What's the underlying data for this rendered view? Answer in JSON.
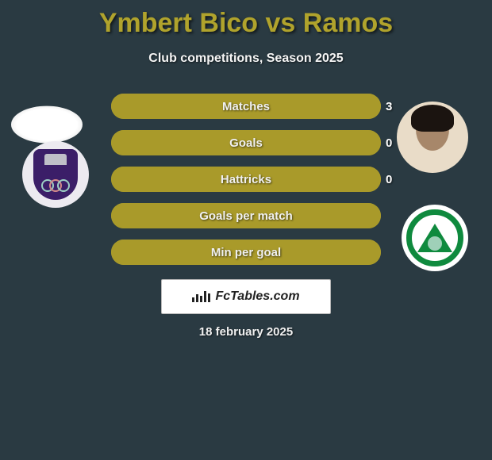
{
  "title": {
    "text": "Ymbert Bico vs Ramos",
    "color": "#b0a32c",
    "fontsize": 34
  },
  "subtitle": {
    "text": "Club competitions, Season 2025",
    "fontsize": 16
  },
  "background_color": "#2a3a42",
  "bar_fill_color": "#a99a2a",
  "bar_outline_color": "#a99a2a",
  "stats": [
    {
      "label": "Matches",
      "left_value": "",
      "right_value": "3",
      "left_pct": 0,
      "right_pct": 100
    },
    {
      "label": "Goals",
      "left_value": "",
      "right_value": "0",
      "left_pct": 0,
      "right_pct": 100
    },
    {
      "label": "Hattricks",
      "left_value": "",
      "right_value": "0",
      "left_pct": 0,
      "right_pct": 100
    },
    {
      "label": "Goals per match",
      "left_value": "",
      "right_value": "",
      "left_pct": 0,
      "right_pct": 100
    },
    {
      "label": "Min per goal",
      "left_value": "",
      "right_value": "",
      "left_pct": 0,
      "right_pct": 100
    }
  ],
  "brand": {
    "text": "FcTables.com"
  },
  "date": {
    "text": "18 february 2025"
  },
  "club_colors": {
    "left_shield": "#3b1e68",
    "right_ring": "#0f8a3e"
  }
}
